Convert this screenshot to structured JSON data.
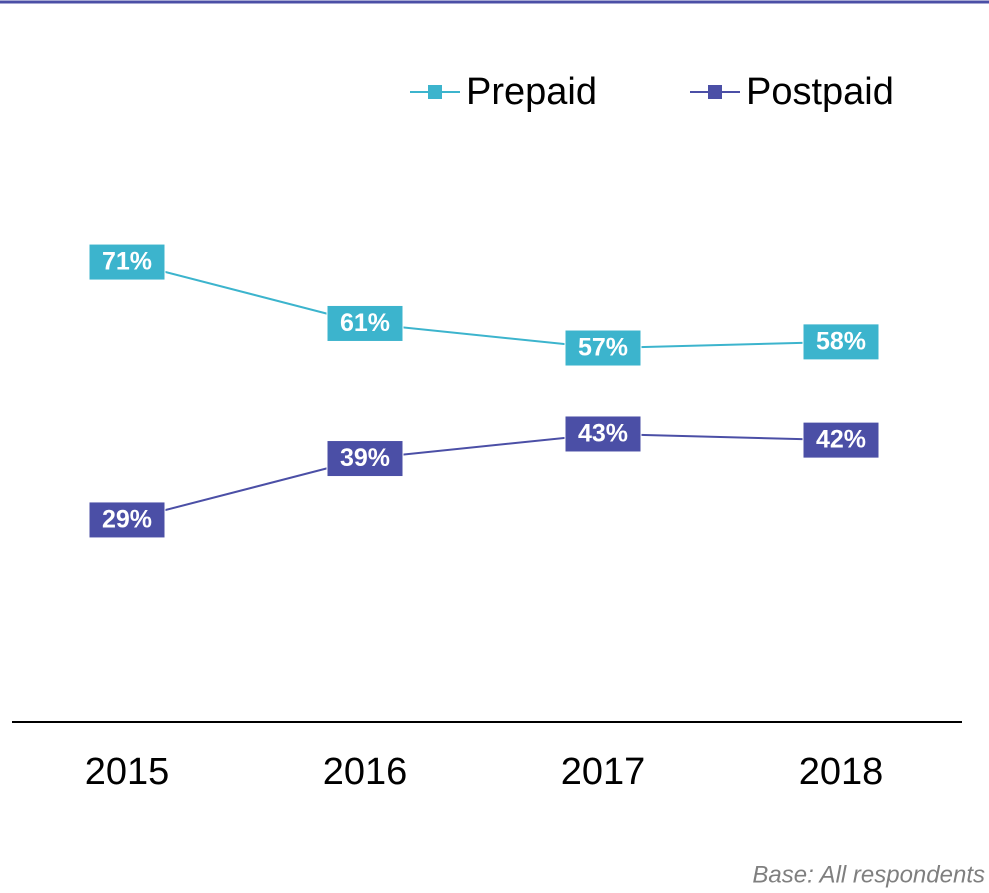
{
  "chart_data": {
    "type": "line",
    "categories": [
      "2015",
      "2016",
      "2017",
      "2018"
    ],
    "series": [
      {
        "name": "Prepaid",
        "color": "#3cb4cd",
        "values": [
          71,
          61,
          57,
          58
        ],
        "value_labels": [
          "71%",
          "61%",
          "57%",
          "58%"
        ]
      },
      {
        "name": "Postpaid",
        "color": "#4b4fa6",
        "values": [
          29,
          39,
          43,
          42
        ],
        "value_labels": [
          "29%",
          "39%",
          "43%",
          "42%"
        ]
      }
    ],
    "ylim": [
      0,
      100
    ],
    "legend": "top-right",
    "footnote": "Base: All respondents"
  }
}
